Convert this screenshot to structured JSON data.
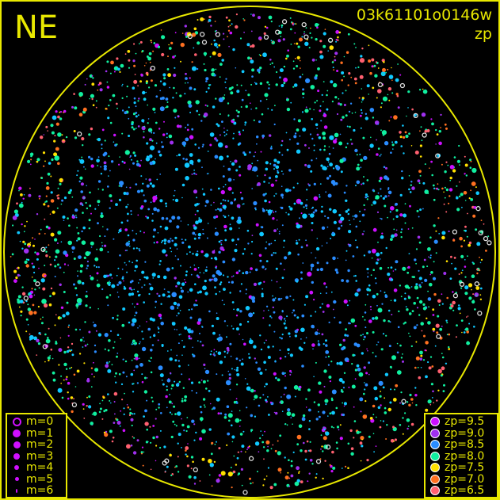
{
  "direction_label": "NE",
  "title": "03k61101o0146w",
  "subtitle": "zp",
  "colors": {
    "frame": "#e8e800",
    "background": "#000000"
  },
  "magnitude_legend": [
    {
      "label": "m=0",
      "marker": "open-circle"
    },
    {
      "label": "m=1"
    },
    {
      "label": "m=2"
    },
    {
      "label": "m=3"
    },
    {
      "label": "m=4"
    },
    {
      "label": "m=5"
    },
    {
      "label": "m=6"
    }
  ],
  "zp_legend": [
    {
      "label": "zp=9.5",
      "color": "#cc10ff"
    },
    {
      "label": "zp=9.0",
      "color": "#a030f0"
    },
    {
      "label": "zp=8.5",
      "color": "#2a8cff"
    },
    {
      "label": "zp=8.0",
      "color": "#10f0a0"
    },
    {
      "label": "zp=7.5",
      "color": "#ffe000"
    },
    {
      "label": "zp=7.0",
      "color": "#ff7020"
    },
    {
      "label": "zp=6.5",
      "color": "#ff6070"
    }
  ],
  "chart_data": {
    "type": "scatter",
    "title": "03k61101o0146w",
    "subtitle": "zp",
    "legend_placement": [
      "bottom-left",
      "bottom-right"
    ]
  }
}
